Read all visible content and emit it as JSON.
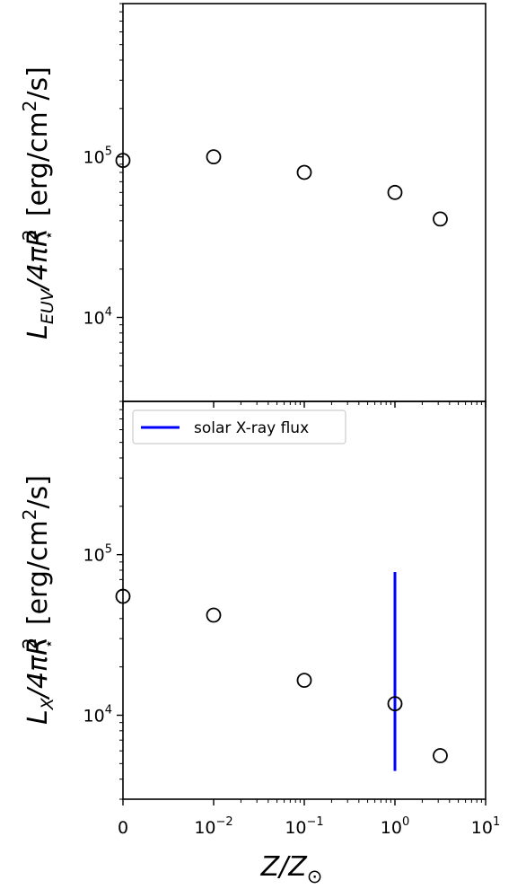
{
  "chart_data": [
    {
      "type": "scatter",
      "panel": "top",
      "ylabel": "L_EUV/4πR⋆² [erg/cm²/s]",
      "ylabel_parts": {
        "main": "L",
        "sub": "EUV",
        "mid": "/4πR",
        "sup": "2",
        "star": "⋆",
        "unit_pre": " [erg/cm",
        "unit_sup": "2",
        "unit_post": "/s]"
      },
      "yscale": "log",
      "ylim": [
        3000,
        900000
      ],
      "y_ticks": [
        {
          "value": 10000,
          "base": "10",
          "exp": "4"
        },
        {
          "value": 100000,
          "base": "10",
          "exp": "5"
        }
      ],
      "x": [
        0,
        0.01,
        0.1,
        1.0,
        3.16
      ],
      "y": [
        95000,
        100000,
        80000,
        60000,
        41000
      ],
      "marker": "open-circle",
      "grid": false
    },
    {
      "type": "scatter",
      "panel": "bottom",
      "ylabel": "L_X/4πR⋆² [erg/cm²/s]",
      "ylabel_parts": {
        "main": "L",
        "sub": "X",
        "mid": "/4πR",
        "sup": "2",
        "star": "⋆",
        "unit_pre": " [erg/cm",
        "unit_sup": "2",
        "unit_post": "/s]"
      },
      "yscale": "log",
      "ylim": [
        3000,
        900000
      ],
      "y_ticks": [
        {
          "value": 10000,
          "base": "10",
          "exp": "4"
        },
        {
          "value": 100000,
          "base": "10",
          "exp": "5"
        }
      ],
      "x": [
        0,
        0.01,
        0.1,
        1.0,
        3.16
      ],
      "y": [
        55000,
        42000,
        16500,
        11800,
        5600
      ],
      "marker": "open-circle",
      "reference_line": {
        "name": "solar X-ray flux",
        "x": 1.0,
        "y_range": [
          4500,
          78000
        ],
        "color": "#0000ff"
      },
      "legend": {
        "placement": "top-left",
        "entries": [
          "solar X-ray flux"
        ]
      },
      "grid": false
    }
  ],
  "xaxis": {
    "label_main": "Z/Z",
    "label_sub": "⊙",
    "scale": "symlog",
    "linthresh": 0.01,
    "xlim": [
      0,
      10
    ],
    "ticks": [
      {
        "value": 0,
        "plain": "0"
      },
      {
        "value": 0.01,
        "base": "10",
        "exp": "−2"
      },
      {
        "value": 0.1,
        "base": "10",
        "exp": "−1"
      },
      {
        "value": 1,
        "base": "10",
        "exp": "0"
      },
      {
        "value": 10,
        "base": "10",
        "exp": "1"
      }
    ]
  },
  "colors": {
    "markers": "#000000",
    "reference_line": "#0000ff",
    "axes": "#000000"
  }
}
